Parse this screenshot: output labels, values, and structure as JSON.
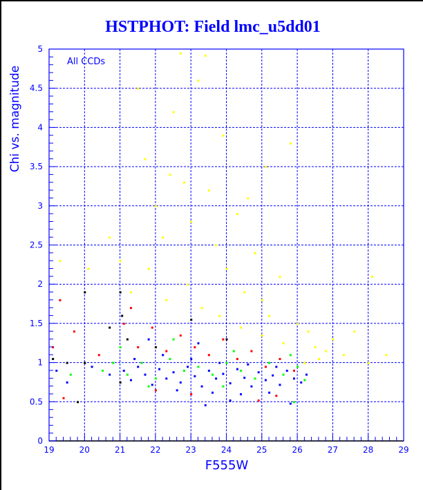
{
  "chart_data": {
    "type": "scatter",
    "title": "HSTPHOT: Field lmc_u5dd01",
    "xlabel": "F555W",
    "ylabel": "Chi vs. magnitude",
    "annotation": "All CCDs",
    "xlim": [
      19,
      29
    ],
    "ylim": [
      0,
      5
    ],
    "grid": true,
    "xticks": [
      "19",
      "20",
      "21",
      "22",
      "23",
      "24",
      "25",
      "26",
      "27",
      "28",
      "29"
    ],
    "yticks": [
      "0",
      "0.5",
      "1",
      "1.5",
      "2",
      "2.5",
      "3",
      "3.5",
      "4",
      "4.5",
      "5"
    ],
    "series": [
      {
        "name": "yellow",
        "color": "#ffff00",
        "points": [
          [
            21.5,
            4.5
          ],
          [
            21.7,
            3.6
          ],
          [
            22.0,
            3.0
          ],
          [
            22.2,
            2.6
          ],
          [
            22.5,
            4.2
          ],
          [
            22.7,
            4.95
          ],
          [
            22.8,
            3.3
          ],
          [
            23.0,
            2.8
          ],
          [
            23.2,
            4.6
          ],
          [
            23.4,
            4.92
          ],
          [
            23.5,
            3.2
          ],
          [
            23.7,
            2.5
          ],
          [
            23.9,
            3.9
          ],
          [
            24.0,
            2.2
          ],
          [
            24.3,
            2.9
          ],
          [
            24.5,
            1.9
          ],
          [
            24.8,
            2.4
          ],
          [
            25.0,
            1.8
          ],
          [
            25.2,
            1.6
          ],
          [
            25.5,
            2.1
          ],
          [
            25.8,
            3.8
          ],
          [
            26.0,
            1.5
          ],
          [
            26.3,
            1.4
          ],
          [
            26.5,
            1.2
          ],
          [
            26.8,
            1.15
          ],
          [
            27.0,
            1.3
          ],
          [
            27.3,
            1.1
          ],
          [
            27.6,
            1.4
          ],
          [
            28.0,
            1.0
          ],
          [
            28.5,
            1.1
          ],
          [
            28.1,
            2.1
          ],
          [
            21.0,
            2.3
          ],
          [
            21.3,
            1.9
          ],
          [
            21.8,
            2.2
          ],
          [
            22.3,
            1.8
          ],
          [
            22.9,
            2.0
          ],
          [
            23.3,
            1.7
          ],
          [
            23.8,
            1.6
          ],
          [
            24.4,
            1.45
          ],
          [
            25.0,
            1.35
          ],
          [
            25.6,
            1.25
          ],
          [
            26.2,
            1.0
          ],
          [
            26.6,
            1.05
          ],
          [
            19.3,
            2.3
          ],
          [
            20.1,
            2.2
          ],
          [
            20.7,
            2.6
          ],
          [
            22.4,
            3.4
          ],
          [
            24.6,
            3.1
          ],
          [
            25.1,
            3.5
          ]
        ]
      },
      {
        "name": "red",
        "color": "#ff0000",
        "points": [
          [
            19.1,
            1.2
          ],
          [
            19.4,
            0.55
          ],
          [
            19.7,
            1.4
          ],
          [
            20.4,
            1.1
          ],
          [
            21.1,
            1.5
          ],
          [
            21.5,
            1.2
          ],
          [
            21.9,
            1.45
          ],
          [
            22.3,
            1.15
          ],
          [
            22.7,
            1.35
          ],
          [
            23.1,
            1.2
          ],
          [
            23.5,
            1.1
          ],
          [
            23.9,
            1.3
          ],
          [
            24.3,
            1.05
          ],
          [
            24.7,
            1.15
          ],
          [
            25.1,
            0.95
          ],
          [
            25.5,
            1.05
          ],
          [
            25.9,
            0.9
          ],
          [
            22.0,
            0.65
          ],
          [
            23.0,
            0.6
          ],
          [
            24.9,
            0.52
          ],
          [
            25.4,
            0.58
          ],
          [
            19.3,
            1.8
          ],
          [
            21.3,
            1.7
          ]
        ]
      },
      {
        "name": "black",
        "color": "#000000",
        "points": [
          [
            19.1,
            1.05
          ],
          [
            19.5,
            1.0
          ],
          [
            20.0,
            1.0
          ],
          [
            20.7,
            1.45
          ],
          [
            21.0,
            1.9
          ],
          [
            21.05,
            1.6
          ],
          [
            21.2,
            1.3
          ],
          [
            22.0,
            1.2
          ],
          [
            23.0,
            1.55
          ],
          [
            24.0,
            1.3
          ],
          [
            20.0,
            1.9
          ],
          [
            19.8,
            0.5
          ],
          [
            21.0,
            0.75
          ]
        ]
      },
      {
        "name": "green",
        "color": "#00ff00",
        "points": [
          [
            20.5,
            0.9
          ],
          [
            20.8,
            1.0
          ],
          [
            21.2,
            0.85
          ],
          [
            21.6,
            1.0
          ],
          [
            22.0,
            0.8
          ],
          [
            22.4,
            1.05
          ],
          [
            22.8,
            0.9
          ],
          [
            23.2,
            0.95
          ],
          [
            23.6,
            0.85
          ],
          [
            24.0,
            1.0
          ],
          [
            24.4,
            0.9
          ],
          [
            24.8,
            0.8
          ],
          [
            25.2,
            1.0
          ],
          [
            25.6,
            0.85
          ],
          [
            26.0,
            0.95
          ],
          [
            26.2,
            0.78
          ],
          [
            21.0,
            1.2
          ],
          [
            22.5,
            1.3
          ],
          [
            24.2,
            1.15
          ],
          [
            25.8,
            1.1
          ],
          [
            19.6,
            0.85
          ],
          [
            21.8,
            0.7
          ],
          [
            23.9,
            0.7
          ],
          [
            25.9,
            0.5
          ]
        ]
      },
      {
        "name": "blue",
        "color": "#0000ff",
        "points": [
          [
            21.1,
            0.9
          ],
          [
            21.3,
            0.78
          ],
          [
            21.5,
            0.95
          ],
          [
            21.7,
            0.85
          ],
          [
            21.9,
            0.72
          ],
          [
            22.1,
            0.92
          ],
          [
            22.3,
            0.8
          ],
          [
            22.5,
            0.88
          ],
          [
            22.7,
            0.75
          ],
          [
            22.9,
            0.95
          ],
          [
            23.1,
            0.83
          ],
          [
            23.3,
            0.7
          ],
          [
            23.5,
            0.9
          ],
          [
            23.7,
            0.8
          ],
          [
            23.9,
            0.86
          ],
          [
            24.1,
            0.74
          ],
          [
            24.3,
            0.92
          ],
          [
            24.5,
            0.81
          ],
          [
            24.7,
            0.7
          ],
          [
            24.9,
            0.88
          ],
          [
            25.1,
            0.78
          ],
          [
            25.3,
            0.84
          ],
          [
            25.5,
            0.72
          ],
          [
            25.7,
            0.9
          ],
          [
            25.9,
            0.8
          ],
          [
            26.1,
            0.75
          ],
          [
            26.25,
            0.85
          ],
          [
            21.4,
            1.05
          ],
          [
            22.2,
            1.1
          ],
          [
            23.0,
            1.05
          ],
          [
            23.8,
            1.0
          ],
          [
            24.6,
            0.98
          ],
          [
            25.4,
            0.95
          ],
          [
            22.6,
            0.65
          ],
          [
            23.6,
            0.62
          ],
          [
            24.4,
            0.6
          ],
          [
            25.2,
            0.62
          ],
          [
            19.2,
            0.9
          ],
          [
            19.5,
            0.75
          ],
          [
            20.2,
            0.95
          ],
          [
            20.7,
            0.85
          ],
          [
            23.4,
            0.46
          ],
          [
            24.1,
            0.52
          ],
          [
            25.8,
            0.48
          ],
          [
            21.8,
            1.3
          ],
          [
            23.2,
            1.25
          ]
        ]
      }
    ]
  }
}
